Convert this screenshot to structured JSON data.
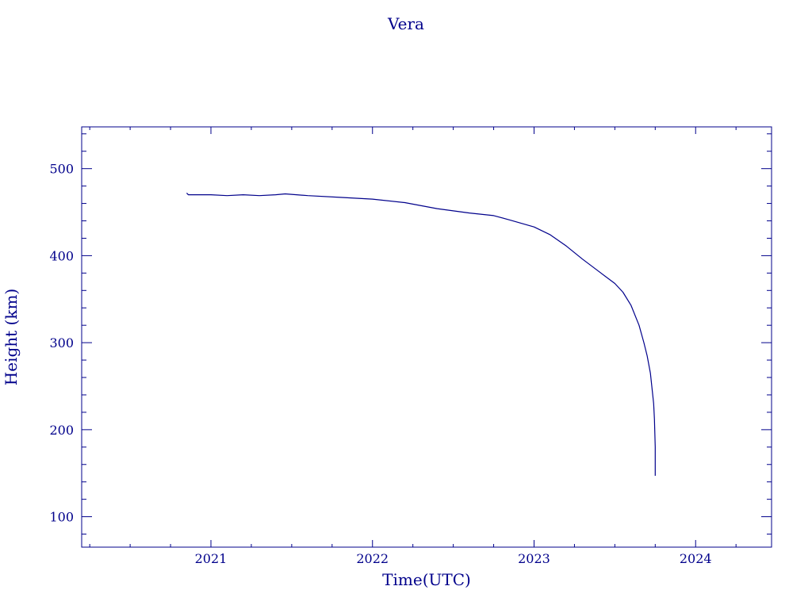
{
  "chart_data": {
    "type": "line",
    "title": "Vera",
    "xlabel": "Time(UTC)",
    "ylabel": "Height (km)",
    "xlim": [
      2020.2,
      2024.47
    ],
    "ylim": [
      65,
      548
    ],
    "x_ticks": [
      2021,
      2022,
      2023,
      2024
    ],
    "x_tick_labels": [
      "2021",
      "2022",
      "2023",
      "2024"
    ],
    "y_ticks": [
      100,
      200,
      300,
      400,
      500
    ],
    "y_tick_labels": [
      "100",
      "200",
      "300",
      "400",
      "500"
    ],
    "grid": false,
    "colors": {
      "line": "#00008b",
      "axes": "#00008b",
      "text": "#00008b",
      "background": "#ffffff"
    },
    "series": [
      {
        "x": [
          2020.85,
          2020.86,
          2021.0,
          2021.1,
          2021.2,
          2021.3,
          2021.4,
          2021.46,
          2021.6,
          2021.8,
          2022.0,
          2022.2,
          2022.4,
          2022.6,
          2022.75,
          2022.85,
          2023.0,
          2023.1,
          2023.2,
          2023.3,
          2023.4,
          2023.5,
          2023.55,
          2023.6,
          2023.65,
          2023.68,
          2023.7,
          2023.72,
          2023.73,
          2023.74,
          2023.745,
          2023.75,
          2023.75
        ],
        "y": [
          472,
          470,
          470,
          469,
          470,
          469,
          470,
          471,
          469,
          467,
          465,
          461,
          454,
          449,
          446,
          441,
          433,
          424,
          411,
          396,
          382,
          368,
          358,
          343,
          320,
          300,
          285,
          265,
          248,
          230,
          212,
          180,
          147
        ]
      }
    ]
  }
}
